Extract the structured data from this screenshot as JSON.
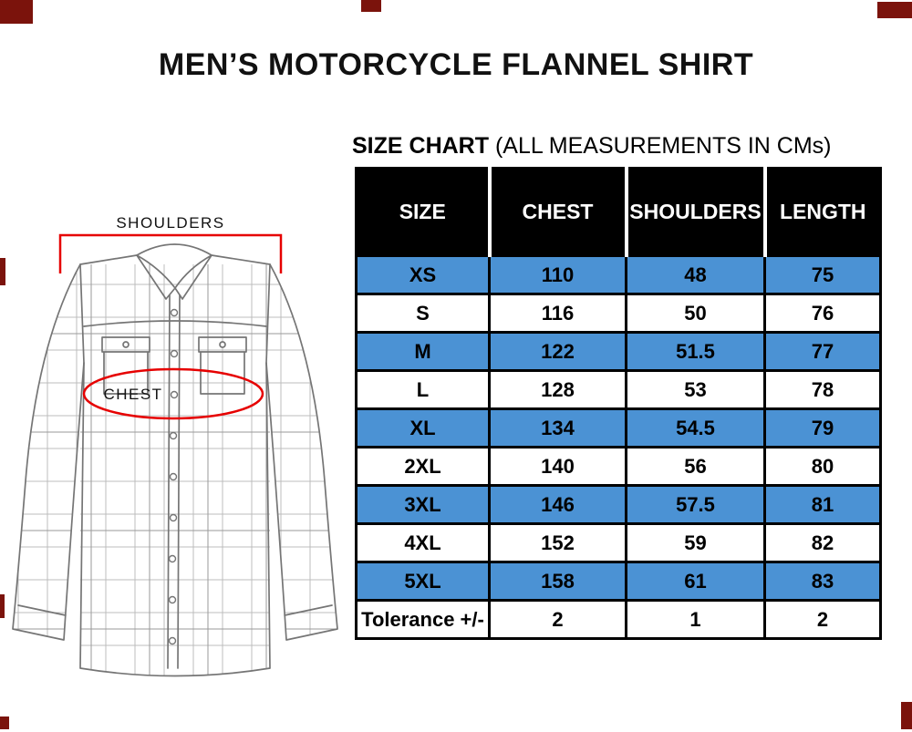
{
  "title": "MEN’S MOTORCYCLE FLANNEL SHIRT",
  "illustration": {
    "shoulders_label": "SHOULDERS",
    "chest_label": "CHEST"
  },
  "size_chart": {
    "heading_bold": "SIZE CHART",
    "heading_note": "(ALL MEASUREMENTS IN CMs)",
    "columns": [
      "SIZE",
      "CHEST",
      "SHOULDERS",
      "LENGTH"
    ],
    "rows": [
      {
        "size": "XS",
        "chest": "110",
        "shoulders": "48",
        "length": "75",
        "highlighted": true
      },
      {
        "size": "S",
        "chest": "116",
        "shoulders": "50",
        "length": "76",
        "highlighted": false
      },
      {
        "size": "M",
        "chest": "122",
        "shoulders": "51.5",
        "length": "77",
        "highlighted": true
      },
      {
        "size": "L",
        "chest": "128",
        "shoulders": "53",
        "length": "78",
        "highlighted": false
      },
      {
        "size": "XL",
        "chest": "134",
        "shoulders": "54.5",
        "length": "79",
        "highlighted": true
      },
      {
        "size": "2XL",
        "chest": "140",
        "shoulders": "56",
        "length": "80",
        "highlighted": false
      },
      {
        "size": "3XL",
        "chest": "146",
        "shoulders": "57.5",
        "length": "81",
        "highlighted": true
      },
      {
        "size": "4XL",
        "chest": "152",
        "shoulders": "59",
        "length": "82",
        "highlighted": false
      },
      {
        "size": "5XL",
        "chest": "158",
        "shoulders": "61",
        "length": "83",
        "highlighted": true
      },
      {
        "size": "Tolerance +/-",
        "chest": "2",
        "shoulders": "1",
        "length": "2",
        "highlighted": false
      }
    ]
  },
  "chart_data": {
    "type": "table",
    "title": "SIZE CHART (ALL MEASUREMENTS IN CMs)",
    "units": "cm",
    "columns": [
      "SIZE",
      "CHEST",
      "SHOULDERS",
      "LENGTH"
    ],
    "rows": [
      [
        "XS",
        110,
        48,
        75
      ],
      [
        "S",
        116,
        50,
        76
      ],
      [
        "M",
        122,
        51.5,
        77
      ],
      [
        "L",
        128,
        53,
        78
      ],
      [
        "XL",
        134,
        54.5,
        79
      ],
      [
        "2XL",
        140,
        56,
        80
      ],
      [
        "3XL",
        146,
        57.5,
        81
      ],
      [
        "4XL",
        152,
        59,
        82
      ],
      [
        "5XL",
        158,
        61,
        83
      ],
      [
        "Tolerance +/-",
        2,
        1,
        2
      ]
    ]
  },
  "colors": {
    "header_bg": "#000000",
    "header_text": "#ffffff",
    "row_highlight": "#4b92d4",
    "annotation_red": "#e60000",
    "artifact_maroon": "#7b130c"
  }
}
